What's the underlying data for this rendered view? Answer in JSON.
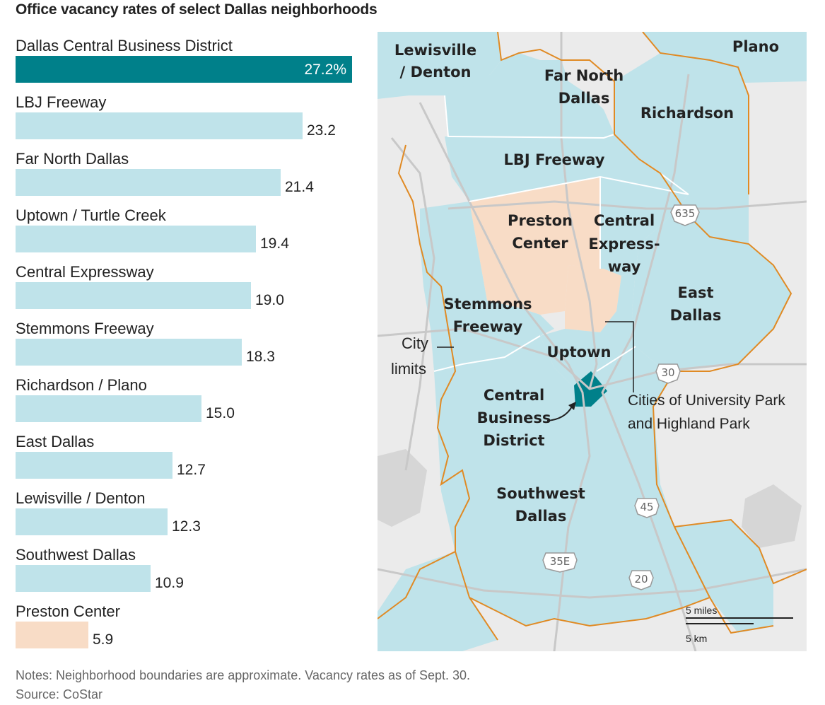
{
  "title": "Office vacancy rates of select Dallas neighborhoods",
  "colors": {
    "highlight": "#00808a",
    "default_bar": "#bfe3ea",
    "preston_bar": "#f8dcc6",
    "map_region": "#bfe3ea",
    "map_land": "#ebebeb",
    "city_limits": "#e08a24",
    "cbd": "#00808a"
  },
  "chart_data": {
    "type": "bar",
    "orientation": "horizontal",
    "categories": [
      "Dallas Central Business District",
      "LBJ Freeway",
      "Far North Dallas",
      "Uptown / Turtle Creek",
      "Central Expressway",
      "Stemmons Freeway",
      "Richardson / Plano",
      "East Dallas",
      "Lewisville / Denton",
      "Southwest Dallas",
      "Preston Center"
    ],
    "values": [
      27.2,
      23.2,
      21.4,
      19.4,
      19.0,
      18.3,
      15.0,
      12.7,
      12.3,
      10.9,
      5.9
    ],
    "value_labels": [
      "27.2%",
      "23.2",
      "21.4",
      "19.4",
      "19.0",
      "18.3",
      "15.0",
      "12.7",
      "12.3",
      "10.9",
      "5.9"
    ],
    "bar_colors": [
      "#00808a",
      "#bfe3ea",
      "#bfe3ea",
      "#bfe3ea",
      "#bfe3ea",
      "#bfe3ea",
      "#bfe3ea",
      "#bfe3ea",
      "#bfe3ea",
      "#bfe3ea",
      "#f8dcc6"
    ],
    "xlim": [
      0,
      27.2
    ]
  },
  "map": {
    "labels": {
      "lewisville_1": "Lewisville",
      "lewisville_2": "/ Denton",
      "farnorth_1": "Far North",
      "farnorth_2": "Dallas",
      "plano": "Plano",
      "richardson": "Richardson",
      "lbj": "LBJ Freeway",
      "preston_1": "Preston",
      "preston_2": "Center",
      "central_1": "Central",
      "central_2": "Express-",
      "central_3": "way",
      "east_1": "East",
      "east_2": "Dallas",
      "stemmons_1": "Stemmons",
      "stemmons_2": "Freeway",
      "uptown": "Uptown",
      "cbd_1": "Central",
      "cbd_2": "Business",
      "cbd_3": "District",
      "southwest_1": "Southwest",
      "southwest_2": "Dallas"
    },
    "annotations": {
      "city_1": "City",
      "city_2": "limits",
      "cities_1": "Cities of University Park",
      "cities_2": "and Highland Park"
    },
    "highways": [
      "635",
      "30",
      "45",
      "35E",
      "20"
    ],
    "scale": {
      "miles": "5 miles",
      "km": "5 km"
    }
  },
  "notes": "Notes: Neighborhood boundaries are approximate. Vacancy rates as of Sept. 30.",
  "source": "Source: CoStar"
}
